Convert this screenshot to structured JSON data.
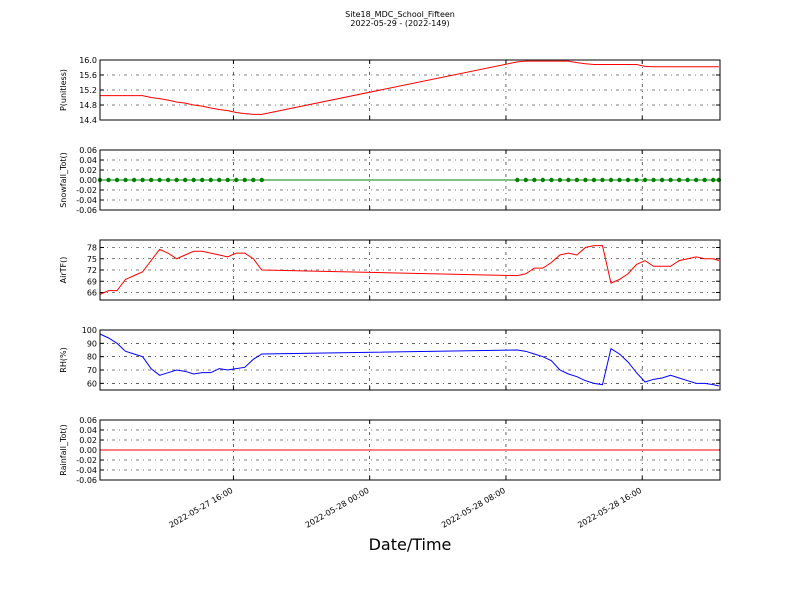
{
  "title": "Site18_MDC_School_Fifteen",
  "subtitle": "2022-05-29 - (2022-149)",
  "x_label": "Date/Time",
  "chart_data": [
    {
      "type": "line",
      "y_label": "P(unitless)",
      "color": "#ff0000",
      "grid": true,
      "x": [
        "2022-05-27 08:10",
        "2022-05-27 08:40",
        "2022-05-27 09:10",
        "2022-05-27 09:40",
        "2022-05-27 10:10",
        "2022-05-27 10:40",
        "2022-05-27 11:10",
        "2022-05-27 11:40",
        "2022-05-27 12:10",
        "2022-05-27 12:40",
        "2022-05-27 13:10",
        "2022-05-27 13:40",
        "2022-05-27 14:10",
        "2022-05-27 14:40",
        "2022-05-27 15:10",
        "2022-05-27 15:40",
        "2022-05-27 16:10",
        "2022-05-27 16:40",
        "2022-05-27 17:10",
        "2022-05-27 17:40",
        "2022-05-28 08:40",
        "2022-05-28 09:10",
        "2022-05-28 09:40",
        "2022-05-28 10:10",
        "2022-05-28 10:40",
        "2022-05-28 11:10",
        "2022-05-28 11:40",
        "2022-05-28 12:10",
        "2022-05-28 12:40",
        "2022-05-28 13:10",
        "2022-05-28 13:40",
        "2022-05-28 14:10",
        "2022-05-28 14:40",
        "2022-05-28 15:10",
        "2022-05-28 15:40",
        "2022-05-28 16:10",
        "2022-05-28 16:40",
        "2022-05-28 17:10",
        "2022-05-28 17:40",
        "2022-05-28 18:10",
        "2022-05-28 18:40",
        "2022-05-28 19:10",
        "2022-05-28 19:40",
        "2022-05-28 20:10",
        "2022-05-28 20:30"
      ],
      "values": [
        15.05,
        15.05,
        15.05,
        15.05,
        15.05,
        15.05,
        15.0,
        14.97,
        14.93,
        14.88,
        14.85,
        14.8,
        14.77,
        14.72,
        14.68,
        14.65,
        14.6,
        14.57,
        14.55,
        14.55,
        15.95,
        15.97,
        15.97,
        15.97,
        15.97,
        15.97,
        15.97,
        15.93,
        15.9,
        15.88,
        15.88,
        15.88,
        15.88,
        15.88,
        15.88,
        15.83,
        15.82,
        15.82,
        15.82,
        15.82,
        15.82,
        15.82,
        15.82,
        15.82,
        15.82
      ],
      "xlim": [
        "2022-05-27 08:10",
        "2022-05-28 20:34"
      ],
      "xticks": [
        "2022-05-27 16:00",
        "2022-05-28 00:00",
        "2022-05-28 08:00",
        "2022-05-28 16:00"
      ],
      "ylim": [
        14.4,
        16.0
      ],
      "yticks": [
        14.4,
        14.8,
        15.2,
        15.6,
        {
          "value": 16.0,
          "label": "16.0"
        }
      ]
    },
    {
      "type": "line",
      "y_label": "Snowfall_Tot()",
      "color": "#008000",
      "markers": true,
      "grid": true,
      "x": [
        "2022-05-27 08:10",
        "2022-05-27 08:40",
        "2022-05-27 09:10",
        "2022-05-27 09:40",
        "2022-05-27 10:10",
        "2022-05-27 10:40",
        "2022-05-27 11:10",
        "2022-05-27 11:40",
        "2022-05-27 12:10",
        "2022-05-27 12:40",
        "2022-05-27 13:10",
        "2022-05-27 13:40",
        "2022-05-27 14:10",
        "2022-05-27 14:40",
        "2022-05-27 15:10",
        "2022-05-27 15:40",
        "2022-05-27 16:10",
        "2022-05-27 16:40",
        "2022-05-27 17:10",
        "2022-05-27 17:40",
        "2022-05-28 08:40",
        "2022-05-28 09:10",
        "2022-05-28 09:40",
        "2022-05-28 10:10",
        "2022-05-28 10:40",
        "2022-05-28 11:10",
        "2022-05-28 11:40",
        "2022-05-28 12:10",
        "2022-05-28 12:40",
        "2022-05-28 13:10",
        "2022-05-28 13:40",
        "2022-05-28 14:10",
        "2022-05-28 14:40",
        "2022-05-28 15:10",
        "2022-05-28 15:40",
        "2022-05-28 16:10",
        "2022-05-28 16:40",
        "2022-05-28 17:10",
        "2022-05-28 17:40",
        "2022-05-28 18:10",
        "2022-05-28 18:40",
        "2022-05-28 19:10",
        "2022-05-28 19:40",
        "2022-05-28 20:10",
        "2022-05-28 20:30"
      ],
      "values": [
        0,
        0,
        0,
        0,
        0,
        0,
        0,
        0,
        0,
        0,
        0,
        0,
        0,
        0,
        0,
        0,
        0,
        0,
        0,
        0,
        0,
        0,
        0,
        0,
        0,
        0,
        0,
        0,
        0,
        0,
        0,
        0,
        0,
        0,
        0,
        0,
        0,
        0,
        0,
        0,
        0,
        0,
        0,
        0,
        0
      ],
      "xlim": [
        "2022-05-27 08:10",
        "2022-05-28 20:34"
      ],
      "xticks": [
        "2022-05-27 16:00",
        "2022-05-28 00:00",
        "2022-05-28 08:00",
        "2022-05-28 16:00"
      ],
      "ylim": [
        -0.06,
        0.06
      ],
      "yticks": [
        -0.06,
        -0.04,
        -0.02,
        {
          "value": 0,
          "label": "0.00"
        },
        0.02,
        0.04,
        0.06
      ]
    },
    {
      "type": "line",
      "y_label": "AirTF()",
      "color": "#ff0000",
      "grid": true,
      "x": [
        "2022-05-27 08:10",
        "2022-05-27 08:40",
        "2022-05-27 09:10",
        "2022-05-27 09:40",
        "2022-05-27 10:10",
        "2022-05-27 10:40",
        "2022-05-27 11:10",
        "2022-05-27 11:40",
        "2022-05-27 12:10",
        "2022-05-27 12:40",
        "2022-05-27 13:10",
        "2022-05-27 13:40",
        "2022-05-27 14:10",
        "2022-05-27 14:40",
        "2022-05-27 15:10",
        "2022-05-27 15:40",
        "2022-05-27 16:10",
        "2022-05-27 16:40",
        "2022-05-27 17:10",
        "2022-05-27 17:40",
        "2022-05-28 08:40",
        "2022-05-28 09:10",
        "2022-05-28 09:40",
        "2022-05-28 10:10",
        "2022-05-28 10:40",
        "2022-05-28 11:10",
        "2022-05-28 11:40",
        "2022-05-28 12:10",
        "2022-05-28 12:40",
        "2022-05-28 13:10",
        "2022-05-28 13:40",
        "2022-05-28 14:10",
        "2022-05-28 14:40",
        "2022-05-28 15:10",
        "2022-05-28 15:40",
        "2022-05-28 16:10",
        "2022-05-28 16:40",
        "2022-05-28 17:10",
        "2022-05-28 17:40",
        "2022-05-28 18:10",
        "2022-05-28 18:40",
        "2022-05-28 19:10",
        "2022-05-28 19:40",
        "2022-05-28 20:10",
        "2022-05-28 20:30"
      ],
      "values": [
        65.5,
        66.5,
        66.5,
        69.5,
        70.5,
        71.5,
        74.5,
        77.5,
        76.5,
        75,
        76,
        77,
        77,
        76.5,
        76,
        75.5,
        76.5,
        76.5,
        75,
        72,
        70.5,
        71,
        72.5,
        72.5,
        74,
        76,
        76.5,
        76,
        78,
        78.5,
        78.5,
        68.5,
        69.5,
        71,
        73.5,
        74.5,
        73,
        73,
        73,
        74.5,
        75,
        75.5,
        75,
        75,
        74.5
      ],
      "xlim": [
        "2022-05-27 08:10",
        "2022-05-28 20:34"
      ],
      "xticks": [
        "2022-05-27 16:00",
        "2022-05-28 00:00",
        "2022-05-28 08:00",
        "2022-05-28 16:00"
      ],
      "ylim": [
        64,
        80
      ],
      "yticks": [
        66,
        69,
        72,
        75,
        78
      ]
    },
    {
      "type": "line",
      "y_label": "RH(%)",
      "color": "#0000ff",
      "grid": true,
      "x": [
        "2022-05-27 08:10",
        "2022-05-27 08:40",
        "2022-05-27 09:10",
        "2022-05-27 09:40",
        "2022-05-27 10:10",
        "2022-05-27 10:40",
        "2022-05-27 11:10",
        "2022-05-27 11:40",
        "2022-05-27 12:10",
        "2022-05-27 12:40",
        "2022-05-27 13:10",
        "2022-05-27 13:40",
        "2022-05-27 14:10",
        "2022-05-27 14:40",
        "2022-05-27 15:10",
        "2022-05-27 15:40",
        "2022-05-27 16:10",
        "2022-05-27 16:40",
        "2022-05-27 17:10",
        "2022-05-27 17:40",
        "2022-05-28 08:40",
        "2022-05-28 09:10",
        "2022-05-28 09:40",
        "2022-05-28 10:10",
        "2022-05-28 10:40",
        "2022-05-28 11:10",
        "2022-05-28 11:40",
        "2022-05-28 12:10",
        "2022-05-28 12:40",
        "2022-05-28 13:10",
        "2022-05-28 13:40",
        "2022-05-28 14:10",
        "2022-05-28 14:40",
        "2022-05-28 15:10",
        "2022-05-28 15:40",
        "2022-05-28 16:10",
        "2022-05-28 16:40",
        "2022-05-28 17:10",
        "2022-05-28 17:40",
        "2022-05-28 18:10",
        "2022-05-28 18:40",
        "2022-05-28 19:10",
        "2022-05-28 19:40",
        "2022-05-28 20:10",
        "2022-05-28 20:30"
      ],
      "values": [
        97,
        94,
        90,
        84,
        82,
        80,
        71,
        66,
        68,
        70,
        69,
        67,
        68,
        68,
        71,
        70,
        71,
        72,
        78,
        82,
        85,
        84,
        82,
        80,
        77,
        70,
        67,
        65,
        62,
        60,
        59,
        86,
        82,
        76,
        68,
        61,
        63,
        64,
        66,
        64,
        62,
        60,
        60,
        59,
        58
      ],
      "xlim": [
        "2022-05-27 08:10",
        "2022-05-28 20:34"
      ],
      "xticks": [
        "2022-05-27 16:00",
        "2022-05-28 00:00",
        "2022-05-28 08:00",
        "2022-05-28 16:00"
      ],
      "ylim": [
        55,
        100
      ],
      "yticks": [
        60,
        70,
        80,
        90,
        100
      ]
    },
    {
      "type": "line",
      "y_label": "Rainfall_Tot()",
      "color": "#ff0000",
      "grid": true,
      "x": [
        "2022-05-27 08:10",
        "2022-05-27 08:40",
        "2022-05-27 09:10",
        "2022-05-27 09:40",
        "2022-05-27 10:10",
        "2022-05-27 10:40",
        "2022-05-27 11:10",
        "2022-05-27 11:40",
        "2022-05-27 12:10",
        "2022-05-27 12:40",
        "2022-05-27 13:10",
        "2022-05-27 13:40",
        "2022-05-27 14:10",
        "2022-05-27 14:40",
        "2022-05-27 15:10",
        "2022-05-27 15:40",
        "2022-05-27 16:10",
        "2022-05-27 16:40",
        "2022-05-27 17:10",
        "2022-05-27 17:40",
        "2022-05-28 08:40",
        "2022-05-28 09:10",
        "2022-05-28 09:40",
        "2022-05-28 10:10",
        "2022-05-28 10:40",
        "2022-05-28 11:10",
        "2022-05-28 11:40",
        "2022-05-28 12:10",
        "2022-05-28 12:40",
        "2022-05-28 13:10",
        "2022-05-28 13:40",
        "2022-05-28 14:10",
        "2022-05-28 14:40",
        "2022-05-28 15:10",
        "2022-05-28 15:40",
        "2022-05-28 16:10",
        "2022-05-28 16:40",
        "2022-05-28 17:10",
        "2022-05-28 17:40",
        "2022-05-28 18:10",
        "2022-05-28 18:40",
        "2022-05-28 19:10",
        "2022-05-28 19:40",
        "2022-05-28 20:10",
        "2022-05-28 20:30"
      ],
      "values": [
        0,
        0,
        0,
        0,
        0,
        0,
        0,
        0,
        0,
        0,
        0,
        0,
        0,
        0,
        0,
        0,
        0,
        0,
        0,
        0,
        0,
        0,
        0,
        0,
        0,
        0,
        0,
        0,
        0,
        0,
        0,
        0,
        0,
        0,
        0,
        0,
        0,
        0,
        0,
        0,
        0,
        0,
        0,
        0,
        0
      ],
      "xlim": [
        "2022-05-27 08:10",
        "2022-05-28 20:34"
      ],
      "xticks": [
        {
          "value": "2022-05-27 16:00",
          "label": "2022-05-27 16:00"
        },
        {
          "value": "2022-05-28 00:00",
          "label": "2022-05-28 00:00"
        },
        {
          "value": "2022-05-28 08:00",
          "label": "2022-05-28 08:00"
        },
        {
          "value": "2022-05-28 16:00",
          "label": "2022-05-28 16:00"
        }
      ],
      "ylim": [
        -0.06,
        0.06
      ],
      "yticks": [
        -0.06,
        -0.04,
        -0.02,
        {
          "value": 0,
          "label": "0.00"
        },
        0.02,
        0.04,
        0.06
      ]
    }
  ]
}
